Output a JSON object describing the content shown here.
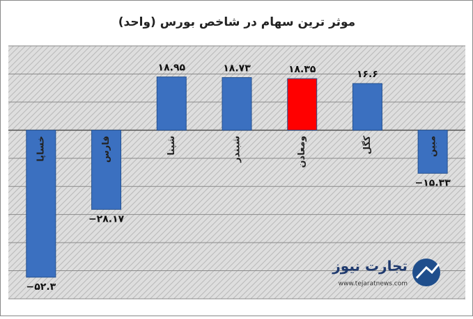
{
  "chart_data": {
    "type": "bar",
    "title": "موثر ترین سهام در شاخص بورس (واحد)",
    "categories": [
      "خساپا",
      "فارس",
      "شپنا",
      "شبندر",
      "ومعادن",
      "کگل",
      "مبین"
    ],
    "values": [
      -52.3,
      -28.17,
      18.95,
      18.73,
      18.35,
      16.6,
      -15.33
    ],
    "value_labels": [
      "−۵۲.۳",
      "−۲۸.۱۷",
      "۱۸.۹۵",
      "۱۸.۷۳",
      "۱۸.۳۵",
      "۱۶.۶",
      "−۱۵.۳۳"
    ],
    "colors": [
      "#3b70c0",
      "#3b70c0",
      "#3b70c0",
      "#3b70c0",
      "#ff0000",
      "#3b70c0",
      "#3b70c0"
    ],
    "ylim": [
      -60,
      30
    ],
    "yticks": [
      -60,
      -50,
      -40,
      -30,
      -20,
      -10,
      0,
      10,
      20,
      30
    ],
    "grid": true
  },
  "watermark": {
    "name": "تجارت نیوز",
    "url": "www.tejaratnews.com"
  }
}
